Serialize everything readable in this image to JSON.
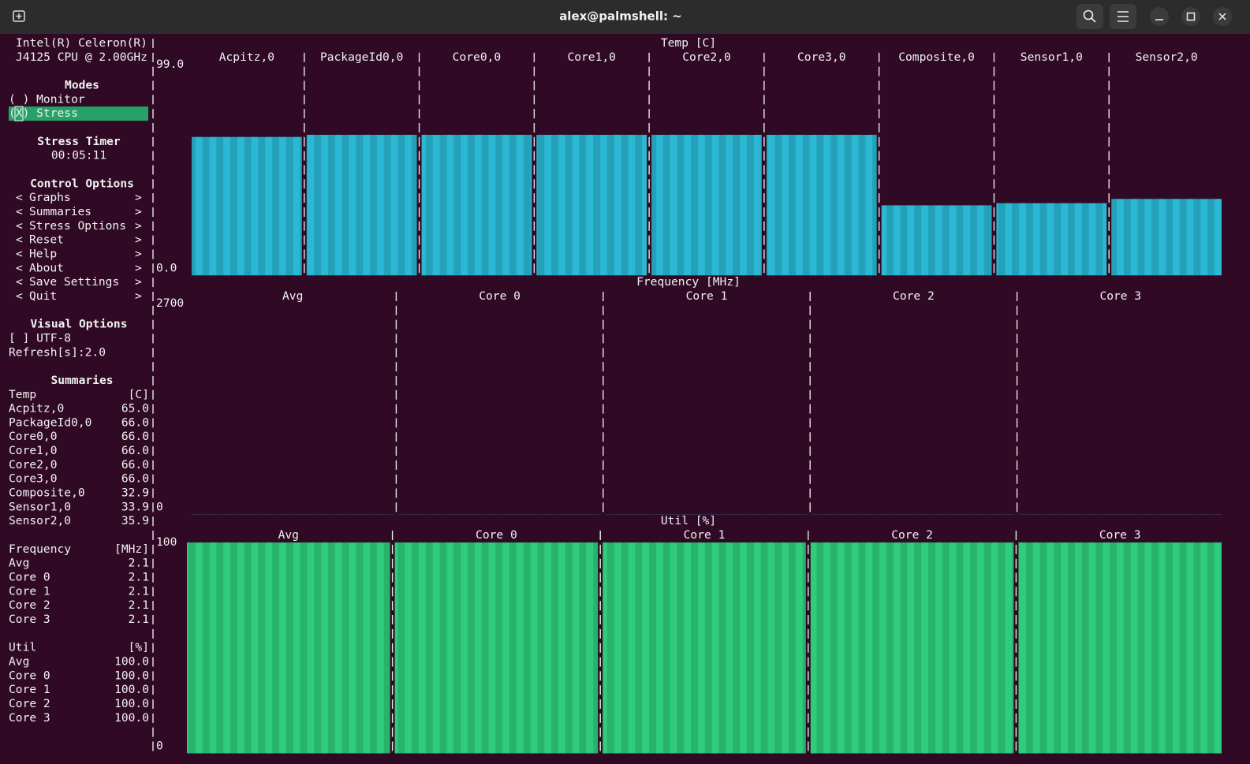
{
  "window": {
    "title": "alex@palmshell: ~"
  },
  "sidebar": {
    "cpu": [
      "Intel(R) Celeron(R)",
      "J4125 CPU @ 2.00GHz"
    ],
    "modes": {
      "title": "Modes",
      "items": [
        "( ) Monitor",
        "(X) Stress"
      ]
    },
    "stress_timer": {
      "title": "Stress Timer",
      "value": "00:05:11"
    },
    "control_options": {
      "title": "Control Options",
      "open": "<",
      "close": ">",
      "items": [
        "Graphs",
        "Summaries",
        "Stress Options",
        "Reset",
        "Help",
        "About",
        "Save Settings",
        "Quit"
      ]
    },
    "visual_options": {
      "title": "Visual Options",
      "items": [
        "[ ] UTF-8",
        "Refresh[s]:2.0"
      ]
    },
    "summaries": {
      "title": "Summaries",
      "groups": [
        {
          "name": "Temp",
          "unit": "[C]"
        },
        {
          "name": "Frequency",
          "unit": "[MHz]"
        },
        {
          "name": "Util",
          "unit": "[%]"
        }
      ]
    }
  },
  "chart_data": [
    {
      "type": "bar",
      "title": "Temp [C]",
      "categories": [
        "Acpitz,0",
        "PackageId0,0",
        "Core0,0",
        "Core1,0",
        "Core2,0",
        "Core3,0",
        "Composite,0",
        "Sensor1,0",
        "Sensor2,0"
      ],
      "values": [
        65,
        66,
        66,
        66,
        66,
        66,
        32.9,
        33.9,
        35.9
      ],
      "value_labels": [
        "65.0",
        "66.0",
        "66.0",
        "66.0",
        "66.0",
        "66.0",
        "32.9",
        "33.9",
        "35.9"
      ],
      "ylim": [
        0,
        99
      ],
      "yticks": [
        {
          "value": 99,
          "label": "99.0"
        },
        {
          "value": 0,
          "label": "0.0"
        }
      ],
      "color": "#2ab8d4"
    },
    {
      "type": "bar",
      "title": "Frequency [MHz]",
      "categories": [
        "Avg",
        "Core 0",
        "Core 1",
        "Core 2",
        "Core 3"
      ],
      "values": [
        2.1,
        2.1,
        2.1,
        2.1,
        2.1
      ],
      "ylim": [
        0,
        2700
      ],
      "yticks": [
        2700,
        0
      ],
      "color": "#2ab8d4"
    },
    {
      "type": "bar",
      "title": "Util [%]",
      "categories": [
        "Avg",
        "Core 0",
        "Core 1",
        "Core 2",
        "Core 3"
      ],
      "values": [
        100,
        100,
        100,
        100,
        100
      ],
      "value_labels": [
        "100.0",
        "100.0",
        "100.0",
        "100.0",
        "100.0"
      ],
      "ylim": [
        0,
        100
      ],
      "yticks": [
        100,
        0
      ],
      "color": "#2ecc7c"
    }
  ]
}
